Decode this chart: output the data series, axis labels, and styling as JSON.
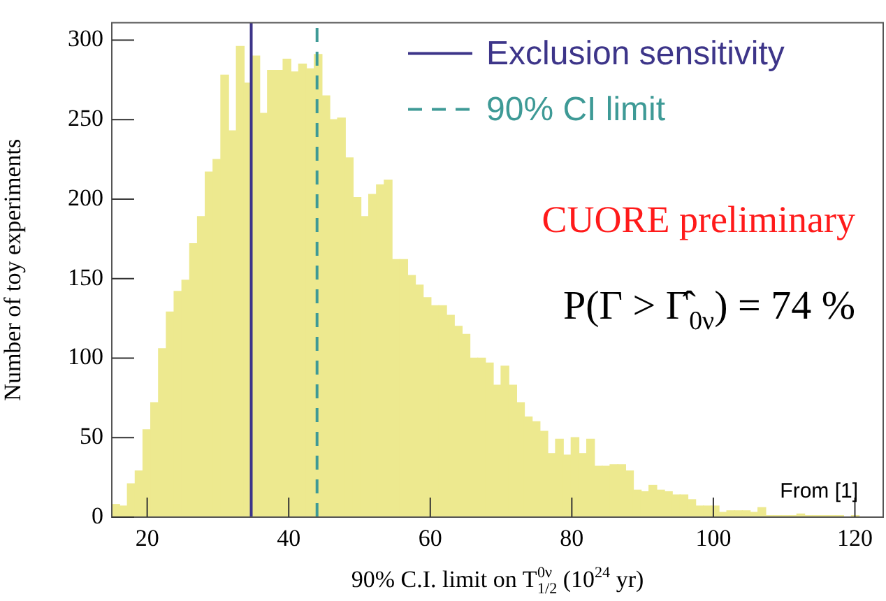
{
  "chart_data": {
    "type": "histogram",
    "xlabel": "90% C.I. limit on T$^{0ν}$$_{1/2}$ (10$^{24}$ yr)",
    "ylabel": "Number of toy experiments",
    "bins": [
      15.0,
      16.1,
      17.2,
      18.3,
      19.4,
      20.5,
      21.6,
      22.7,
      23.8,
      24.9,
      26.0,
      27.1,
      28.2,
      29.3,
      30.4,
      31.5,
      32.6,
      33.7,
      34.8,
      35.9,
      37.0,
      38.1,
      39.2,
      40.3,
      41.4,
      42.5,
      43.6,
      44.7,
      45.8,
      46.9,
      48.0,
      49.1,
      50.2,
      51.3,
      52.4,
      53.5,
      54.6,
      55.7,
      56.8,
      57.9,
      59.0,
      60.1,
      61.2,
      62.3,
      63.4,
      64.5,
      65.6,
      66.7,
      67.8,
      68.9,
      70.0,
      71.1,
      72.2,
      73.3,
      74.4,
      75.5,
      76.6,
      77.7,
      78.8,
      79.9,
      81.0,
      82.1,
      83.2,
      84.3,
      85.4,
      86.5,
      87.6,
      88.7,
      89.8,
      90.9,
      92.0,
      93.1,
      94.2,
      95.3,
      96.4,
      97.5,
      98.6,
      99.7,
      100.8,
      101.9,
      103.0,
      104.1,
      105.2,
      106.3,
      107.4,
      108.5,
      109.6,
      110.7,
      111.8,
      112.9,
      114.0,
      115.1,
      116.2,
      117.3,
      118.4,
      119.5,
      120.6,
      121.7,
      122.8,
      123.9
    ],
    "values": [
      8,
      7,
      21,
      29,
      55,
      72,
      106,
      129,
      142,
      149,
      172,
      189,
      217,
      225,
      278,
      243,
      296,
      273,
      290,
      254,
      281,
      281,
      288,
      280,
      285,
      282,
      291,
      265,
      250,
      251,
      226,
      201,
      189,
      203,
      209,
      212,
      162,
      162,
      152,
      146,
      138,
      133,
      133,
      127,
      120,
      115,
      100,
      100,
      97,
      83,
      95,
      83,
      72,
      63,
      60,
      54,
      40,
      49,
      39,
      50,
      40,
      49,
      32,
      32,
      33,
      33,
      29,
      17,
      16,
      20,
      17,
      16,
      14,
      14,
      11,
      7,
      7,
      7,
      3,
      4,
      4,
      4,
      3,
      6,
      1,
      1,
      1,
      1,
      2,
      1,
      1,
      1,
      1,
      1,
      0,
      1,
      0,
      0,
      0
    ],
    "color": "#ede98f",
    "xlim": [
      15,
      124
    ],
    "xticks": [
      20,
      40,
      60,
      80,
      100,
      120
    ],
    "ylim": [
      0,
      311
    ],
    "yticks": [
      0,
      50,
      100,
      150,
      200,
      250,
      300
    ],
    "grid": false,
    "legend": "top right",
    "ref_lines": [
      {
        "axis": "x",
        "value": 34.7,
        "label": "Exclusion sensitivity",
        "color": "#3d3589",
        "line_style": "solid"
      },
      {
        "axis": "x",
        "value": 44.0,
        "label": "90% CI limit",
        "color": "#3e9a96",
        "line_style": "dashed"
      }
    ],
    "annotations": [
      "CUORE preliminary",
      "P(Γ > Γ̂$_{0ν}$) = 74 %",
      "From [1]"
    ]
  }
}
